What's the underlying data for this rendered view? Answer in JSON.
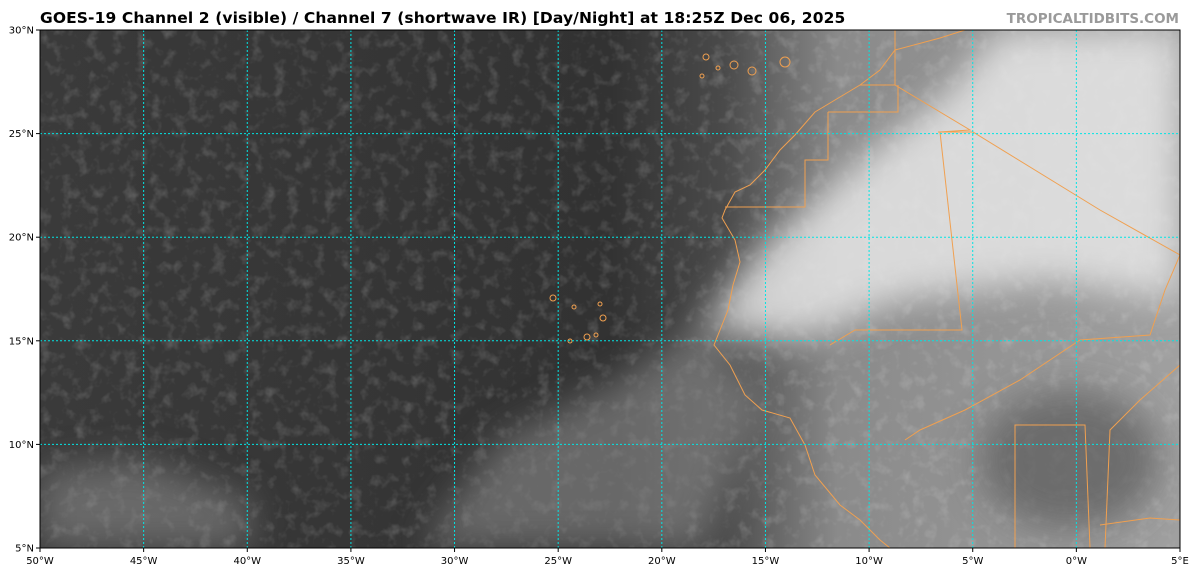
{
  "header": {
    "title": "GOES-19 Channel 2 (visible) / Channel 7 (shortwave IR) [Day/Night] at 18:25Z Dec 06, 2025",
    "brand": "TROPICALTIDBITS.COM"
  },
  "map": {
    "lon_range": [
      -50,
      5
    ],
    "lat_range": [
      5,
      30
    ],
    "gridline_color": "#00e5e5",
    "coastline_color": "#f0a050",
    "x_ticks": [
      {
        "value": -50,
        "label": "50°W"
      },
      {
        "value": -45,
        "label": "45°W"
      },
      {
        "value": -40,
        "label": "40°W"
      },
      {
        "value": -35,
        "label": "35°W"
      },
      {
        "value": -30,
        "label": "30°W"
      },
      {
        "value": -25,
        "label": "25°W"
      },
      {
        "value": -20,
        "label": "20°W"
      },
      {
        "value": -15,
        "label": "15°W"
      },
      {
        "value": -10,
        "label": "10°W"
      },
      {
        "value": -5,
        "label": "5°W"
      },
      {
        "value": 0,
        "label": "0°W"
      },
      {
        "value": 5,
        "label": "5°E"
      }
    ],
    "y_ticks": [
      {
        "value": 30,
        "label": "30°N"
      },
      {
        "value": 25,
        "label": "25°N"
      },
      {
        "value": 20,
        "label": "20°N"
      },
      {
        "value": 15,
        "label": "15°N"
      },
      {
        "value": 10,
        "label": "10°N"
      },
      {
        "value": 5,
        "label": "5°N"
      }
    ]
  }
}
